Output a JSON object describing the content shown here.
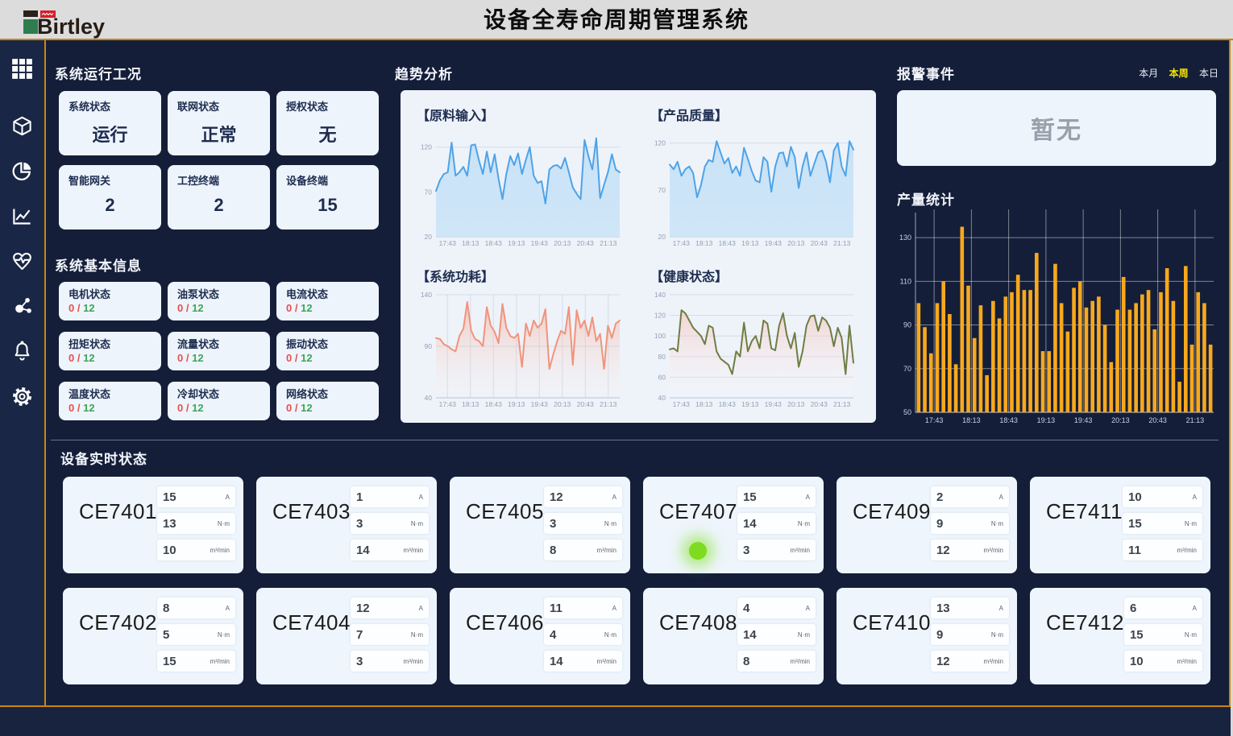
{
  "header": {
    "logo": "Birtley",
    "title": "设备全寿命周期管理系统"
  },
  "sidebar": {
    "icons": [
      "grid",
      "cube",
      "pie-chart",
      "line-chart",
      "health-pulse",
      "network",
      "bell",
      "settings"
    ]
  },
  "colors": {
    "gold_accent": "#c8860e",
    "navy_bg": "#141e39",
    "card_bg": "#eef4fb",
    "bar_orange": "#f7a81d",
    "line_blue": "#4da3e8",
    "line_salmon": "#f2937b",
    "line_olive": "#6f7d42",
    "tab_active_yellow": "#f5e400",
    "alarm_red": "#e4504e",
    "ok_green": "#3ea558",
    "indicator_green": "#7edb1f"
  },
  "system_status": {
    "title": "系统运行工况",
    "cards": [
      {
        "label": "系统状态",
        "value": "运行"
      },
      {
        "label": "联网状态",
        "value": "正常"
      },
      {
        "label": "授权状态",
        "value": "无"
      },
      {
        "label": "智能网关",
        "value": "2"
      },
      {
        "label": "工控终端",
        "value": "2"
      },
      {
        "label": "设备终端",
        "value": "15"
      }
    ]
  },
  "basic_info": {
    "title": "系统基本信息",
    "cards": [
      {
        "label": "电机状态",
        "alarm": "0 /",
        "total": "12"
      },
      {
        "label": "油泵状态",
        "alarm": "0 /",
        "total": "12"
      },
      {
        "label": "电流状态",
        "alarm": "0 /",
        "total": "12"
      },
      {
        "label": "扭矩状态",
        "alarm": "0 /",
        "total": "12"
      },
      {
        "label": "流量状态",
        "alarm": "0 /",
        "total": "12"
      },
      {
        "label": "振动状态",
        "alarm": "0 /",
        "total": "12"
      },
      {
        "label": "温度状态",
        "alarm": "0 /",
        "total": "12"
      },
      {
        "label": "冷却状态",
        "alarm": "0 /",
        "total": "12"
      },
      {
        "label": "网络状态",
        "alarm": "0 /",
        "total": "12"
      }
    ]
  },
  "trend": {
    "title": "趋势分析"
  },
  "alarm": {
    "title": "报警事件",
    "tabs": [
      "本月",
      "本周",
      "本日"
    ],
    "active_tab": "本周",
    "empty_text": "暂无"
  },
  "production": {
    "title": "产量统计"
  },
  "devices": {
    "title": "设备实时状态",
    "units": [
      "A",
      "N·m",
      "m³/min"
    ],
    "highlight_device": "CE7407",
    "cards": [
      {
        "name": "CE7401",
        "values": [
          15,
          13,
          10
        ]
      },
      {
        "name": "CE7403",
        "values": [
          1,
          3,
          14
        ]
      },
      {
        "name": "CE7405",
        "values": [
          12,
          3,
          8
        ]
      },
      {
        "name": "CE7407",
        "values": [
          15,
          14,
          3
        ],
        "indicator": "green"
      },
      {
        "name": "CE7409",
        "values": [
          2,
          9,
          12
        ]
      },
      {
        "name": "CE7411",
        "values": [
          10,
          15,
          11
        ]
      },
      {
        "name": "CE7402",
        "values": [
          8,
          5,
          15
        ]
      },
      {
        "name": "CE7404",
        "values": [
          12,
          7,
          3
        ]
      },
      {
        "name": "CE7406",
        "values": [
          11,
          4,
          14
        ]
      },
      {
        "name": "CE7408",
        "values": [
          4,
          14,
          8
        ]
      },
      {
        "name": "CE7410",
        "values": [
          13,
          9,
          12
        ]
      },
      {
        "name": "CE7412",
        "values": [
          6,
          15,
          10
        ]
      }
    ]
  },
  "chart_data": [
    {
      "id": "raw-material-input",
      "type": "area",
      "title": "【原料输入】",
      "color": "#4da3e8",
      "fill_top": "#c9e2f6",
      "fill_bottom": "#cfe6f8",
      "grid": "h",
      "ylim": [
        20,
        135
      ],
      "y_ticks": [
        120,
        70,
        20
      ],
      "x_labels": [
        "17:43",
        "18:13",
        "18:43",
        "19:13",
        "19:43",
        "20:13",
        "20:43",
        "21:13"
      ],
      "values": [
        71,
        83,
        90,
        92,
        125,
        88,
        92,
        98,
        88,
        122,
        123,
        105,
        90,
        115,
        92,
        112,
        85,
        62,
        90,
        110,
        100,
        113,
        90,
        106,
        120,
        88,
        80,
        82,
        57,
        95,
        99,
        100,
        96,
        108,
        92,
        75,
        68,
        62,
        128,
        110,
        95,
        130,
        63,
        78,
        92,
        112,
        95,
        92
      ]
    },
    {
      "id": "product-quality",
      "type": "area",
      "title": "【产品质量】",
      "color": "#4da3e8",
      "fill_top": "#c9e2f6",
      "fill_bottom": "#cfe6f8",
      "grid": "h",
      "ylim": [
        20,
        130
      ],
      "y_ticks": [
        120,
        70,
        20
      ],
      "x_labels": [
        "17:43",
        "18:13",
        "18:43",
        "19:13",
        "19:43",
        "20:13",
        "20:43",
        "21:13"
      ],
      "values": [
        97,
        92,
        100,
        85,
        92,
        95,
        88,
        62,
        75,
        95,
        102,
        100,
        122,
        110,
        98,
        104,
        88,
        95,
        85,
        115,
        103,
        90,
        80,
        78,
        105,
        100,
        68,
        95,
        109,
        110,
        95,
        116,
        105,
        72,
        95,
        110,
        85,
        98,
        110,
        112,
        100,
        78,
        112,
        120,
        95,
        85,
        122,
        113
      ]
    },
    {
      "id": "system-power",
      "type": "area",
      "title": "【系统功耗】",
      "color": "#f2937b",
      "fill_top": "rgba(243,150,120,0.45)",
      "fill_bottom": "rgba(255,240,238,0.08)",
      "grid": "hv",
      "ylim": [
        40,
        140
      ],
      "y_ticks": [
        140,
        90,
        40
      ],
      "x_labels": [
        "17:43",
        "18:13",
        "18:43",
        "19:13",
        "19:43",
        "20:13",
        "20:43",
        "21:13"
      ],
      "values": [
        98,
        97,
        92,
        90,
        87,
        85,
        100,
        107,
        133,
        105,
        97,
        95,
        90,
        128,
        110,
        104,
        93,
        131,
        108,
        100,
        98,
        102,
        70,
        112,
        100,
        115,
        108,
        112,
        126,
        68,
        82,
        95,
        105,
        102,
        128,
        72,
        125,
        108,
        115,
        100,
        118,
        95,
        102,
        68,
        110,
        98,
        112,
        115
      ]
    },
    {
      "id": "health-status",
      "type": "area",
      "title": "【健康状态】",
      "color": "#6f7d42",
      "fill_top": "rgba(246,185,175,0.55)",
      "fill_bottom": "rgba(255,250,250,0.08)",
      "grid": "h",
      "ylim": [
        40,
        140
      ],
      "y_ticks": [
        140,
        120,
        100,
        80,
        60,
        40
      ],
      "x_labels": [
        "17:43",
        "18:13",
        "18:43",
        "19:13",
        "19:43",
        "20:13",
        "20:43",
        "21:13"
      ],
      "values": [
        87,
        88,
        85,
        125,
        122,
        115,
        108,
        104,
        100,
        92,
        110,
        108,
        85,
        78,
        75,
        72,
        63,
        85,
        80,
        113,
        85,
        95,
        100,
        88,
        115,
        112,
        88,
        86,
        110,
        122,
        100,
        88,
        103,
        70,
        85,
        110,
        119,
        120,
        105,
        118,
        115,
        108,
        90,
        108,
        98,
        63,
        110,
        74
      ]
    },
    {
      "id": "production-stats",
      "type": "bar",
      "title": "产量统计",
      "color": "#f7a81d",
      "grid": "hv",
      "ylim": [
        50,
        140
      ],
      "y_ticks": [
        130,
        110,
        90,
        70,
        50
      ],
      "x_labels": [
        "17:43",
        "18:13",
        "18:43",
        "19:13",
        "19:43",
        "20:13",
        "20:43",
        "21:13"
      ],
      "values": [
        100,
        89,
        77,
        100,
        110,
        95,
        72,
        135,
        108,
        84,
        99,
        67,
        101,
        93,
        103,
        105,
        113,
        106,
        106,
        123,
        78,
        78,
        118,
        100,
        87,
        107,
        110,
        98,
        101,
        103,
        90,
        73,
        97,
        112,
        97,
        100,
        104,
        106,
        88,
        105,
        116,
        101,
        64,
        117,
        81,
        105,
        100,
        81
      ]
    }
  ]
}
